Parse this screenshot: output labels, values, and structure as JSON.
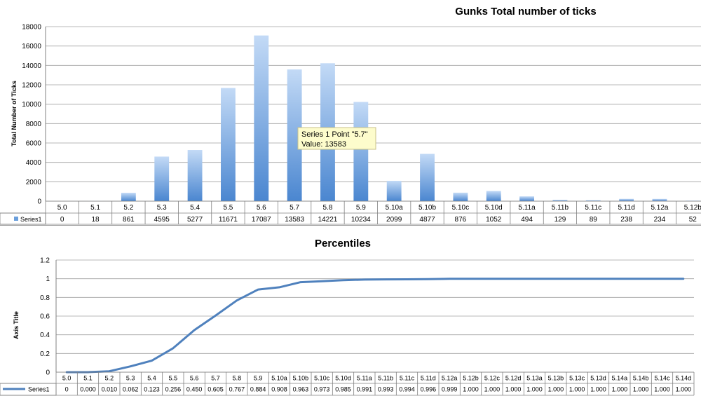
{
  "chart_data": [
    {
      "type": "bar",
      "title": "Gunks Total number of ticks",
      "ylabel": "Total Number of Ticks",
      "ylim": [
        0,
        18000
      ],
      "yticks": [
        0,
        2000,
        4000,
        6000,
        8000,
        10000,
        12000,
        14000,
        16000,
        18000
      ],
      "grid": true,
      "legend": "data-table",
      "bar_color": "#5b93d6",
      "categories": [
        "5.0",
        "5.1",
        "5.2",
        "5.3",
        "5.4",
        "5.5",
        "5.6",
        "5.7",
        "5.8",
        "5.9",
        "5.10a",
        "5.10b",
        "5.10c",
        "5.10d",
        "5.11a",
        "5.11b",
        "5.11c",
        "5.11d",
        "5.12a",
        "5.12b"
      ],
      "series": [
        {
          "name": "Series1",
          "values": [
            0,
            18,
            861,
            4595,
            5277,
            11671,
            17087,
            13583,
            14221,
            10234,
            2099,
            4877,
            876,
            1052,
            494,
            129,
            89,
            238,
            234,
            52
          ]
        }
      ],
      "tooltip": {
        "line1": "Series 1 Point \"5.7\"",
        "line2": "Value: 13583"
      }
    },
    {
      "type": "line",
      "title": "Percentiles",
      "ylabel": "Axis Title",
      "ylim": [
        0,
        1.2
      ],
      "yticks": [
        "0",
        "0.2",
        "0.4",
        "0.6",
        "0.8",
        "1",
        "1.2"
      ],
      "grid": true,
      "legend": "data-table",
      "line_color": "#4f81bd",
      "categories": [
        "5.0",
        "5.1",
        "5.2",
        "5.3",
        "5.4",
        "5.5",
        "5.6",
        "5.7",
        "5.8",
        "5.9",
        "5.10a",
        "5.10b",
        "5.10c",
        "5.10d",
        "5.11a",
        "5.11b",
        "5.11c",
        "5.11d",
        "5.12a",
        "5.12b",
        "5.12c",
        "5.12d",
        "5.13a",
        "5.13b",
        "5.13c",
        "5.13d",
        "5.14a",
        "5.14b",
        "5.14c",
        "5.14d"
      ],
      "series": [
        {
          "name": "Series1",
          "values": [
            0,
            0.0,
            0.01,
            0.062,
            0.123,
            0.256,
            0.45,
            0.605,
            0.767,
            0.884,
            0.908,
            0.963,
            0.973,
            0.985,
            0.991,
            0.993,
            0.994,
            0.996,
            0.999,
            1.0,
            1.0,
            1.0,
            1.0,
            1.0,
            1.0,
            1.0,
            1.0,
            1.0,
            1.0,
            1.0
          ],
          "labels": [
            "0",
            "0.000",
            "0.010",
            "0.062",
            "0.123",
            "0.256",
            "0.450",
            "0.605",
            "0.767",
            "0.884",
            "0.908",
            "0.963",
            "0.973",
            "0.985",
            "0.991",
            "0.993",
            "0.994",
            "0.996",
            "0.999",
            "1.000",
            "1.000",
            "1.000",
            "1.000",
            "1.000",
            "1.000",
            "1.000",
            "1.000",
            "1.000",
            "1.000",
            "1.000"
          ]
        }
      ]
    }
  ]
}
